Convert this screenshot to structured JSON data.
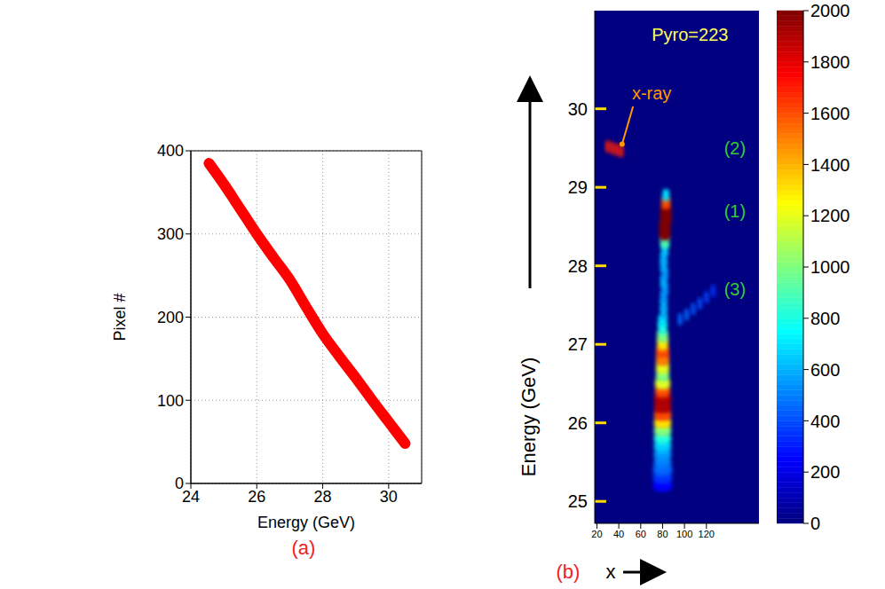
{
  "chart_data": [
    {
      "type": "line",
      "panel": "(a)",
      "x_label": "Energy (GeV)",
      "y_label": "Pixel #",
      "x": [
        24.55,
        25.0,
        25.5,
        26.0,
        26.5,
        27.0,
        27.5,
        28.0,
        28.5,
        29.0,
        29.5,
        30.0,
        30.5
      ],
      "values": [
        385,
        360,
        330,
        300,
        272,
        245,
        212,
        180,
        153,
        127,
        100,
        74,
        48
      ],
      "color": "#ff0000",
      "line_style": "solid",
      "xlim": [
        24,
        31
      ],
      "xticks": [
        24,
        26,
        28,
        30
      ],
      "ylim": [
        0,
        400
      ],
      "yticks": [
        0,
        100,
        200,
        300,
        400
      ],
      "grid": true
    },
    {
      "type": "heatmap",
      "panel": "(b)",
      "x_label": "x",
      "y_label": "Energy (GeV)",
      "xlim": [
        18,
        168
      ],
      "xticks": [
        20,
        40,
        60,
        80,
        100,
        120
      ],
      "ylim": [
        24.72,
        31.25
      ],
      "yticks": [
        25,
        26,
        27,
        28,
        29,
        30
      ],
      "cell_height": 0.1,
      "cells": [
        {
          "x": 80,
          "y": 25.2,
          "v": 250,
          "w": 9
        },
        {
          "x": 80,
          "y": 25.3,
          "v": 350,
          "w": 9
        },
        {
          "x": 80,
          "y": 25.4,
          "v": 450,
          "w": 9
        },
        {
          "x": 80,
          "y": 25.5,
          "v": 500,
          "w": 8
        },
        {
          "x": 80,
          "y": 25.6,
          "v": 550,
          "w": 8
        },
        {
          "x": 80,
          "y": 25.7,
          "v": 650,
          "w": 8
        },
        {
          "x": 80,
          "y": 25.8,
          "v": 800,
          "w": 8
        },
        {
          "x": 80,
          "y": 25.9,
          "v": 1000,
          "w": 8
        },
        {
          "x": 80,
          "y": 26.0,
          "v": 1300,
          "w": 8
        },
        {
          "x": 80,
          "y": 26.1,
          "v": 1600,
          "w": 8
        },
        {
          "x": 80,
          "y": 26.2,
          "v": 1900,
          "w": 8
        },
        {
          "x": 80,
          "y": 26.3,
          "v": 1900,
          "w": 8
        },
        {
          "x": 80,
          "y": 26.4,
          "v": 1600,
          "w": 7
        },
        {
          "x": 80,
          "y": 26.5,
          "v": 1200,
          "w": 7
        },
        {
          "x": 80,
          "y": 26.6,
          "v": 1000,
          "w": 6
        },
        {
          "x": 80,
          "y": 26.7,
          "v": 1200,
          "w": 6
        },
        {
          "x": 80,
          "y": 26.8,
          "v": 1500,
          "w": 6
        },
        {
          "x": 80,
          "y": 26.9,
          "v": 1600,
          "w": 6
        },
        {
          "x": 80,
          "y": 27.0,
          "v": 1300,
          "w": 5
        },
        {
          "x": 80,
          "y": 27.1,
          "v": 1000,
          "w": 5
        },
        {
          "x": 80,
          "y": 27.2,
          "v": 800,
          "w": 4
        },
        {
          "x": 80,
          "y": 27.3,
          "v": 700,
          "w": 4
        },
        {
          "x": 81,
          "y": 27.4,
          "v": 600,
          "w": 3
        },
        {
          "x": 81,
          "y": 27.5,
          "v": 600,
          "w": 3
        },
        {
          "x": 81,
          "y": 27.6,
          "v": 550,
          "w": 3
        },
        {
          "x": 82,
          "y": 27.7,
          "v": 550,
          "w": 3
        },
        {
          "x": 81,
          "y": 27.8,
          "v": 600,
          "w": 3
        },
        {
          "x": 82,
          "y": 27.9,
          "v": 550,
          "w": 3
        },
        {
          "x": 81,
          "y": 28.0,
          "v": 600,
          "w": 3
        },
        {
          "x": 81,
          "y": 28.1,
          "v": 600,
          "w": 3
        },
        {
          "x": 82,
          "y": 28.2,
          "v": 650,
          "w": 3
        },
        {
          "x": 82,
          "y": 28.3,
          "v": 900,
          "w": 4
        },
        {
          "x": 82,
          "y": 28.4,
          "v": 2000,
          "w": 5
        },
        {
          "x": 82,
          "y": 28.5,
          "v": 2000,
          "w": 5
        },
        {
          "x": 83,
          "y": 28.6,
          "v": 2000,
          "w": 5
        },
        {
          "x": 83,
          "y": 28.7,
          "v": 2000,
          "w": 5
        },
        {
          "x": 83,
          "y": 28.8,
          "v": 1600,
          "w": 4
        },
        {
          "x": 83,
          "y": 28.9,
          "v": 700,
          "w": 3
        },
        {
          "x": 96,
          "y": 27.32,
          "v": 450,
          "w": 2
        },
        {
          "x": 102,
          "y": 27.38,
          "v": 450,
          "w": 2
        },
        {
          "x": 108,
          "y": 27.45,
          "v": 420,
          "w": 2
        },
        {
          "x": 114,
          "y": 27.52,
          "v": 400,
          "w": 2
        },
        {
          "x": 120,
          "y": 27.6,
          "v": 380,
          "w": 2
        },
        {
          "x": 126,
          "y": 27.68,
          "v": 350,
          "w": 2
        },
        {
          "x": 30,
          "y": 29.52,
          "v": 1700,
          "w": 2
        },
        {
          "x": 34,
          "y": 29.5,
          "v": 1700,
          "w": 2
        },
        {
          "x": 38,
          "y": 29.48,
          "v": 1700,
          "w": 2
        },
        {
          "x": 42,
          "y": 29.46,
          "v": 1700,
          "w": 2
        }
      ],
      "colorbar": {
        "range": [
          0,
          2000
        ],
        "ticks": [
          0,
          200,
          400,
          600,
          800,
          1000,
          1200,
          1400,
          1600,
          1800,
          2000
        ]
      },
      "annotations": [
        {
          "text": "Pyro=223",
          "x": 105,
          "y": 30.95,
          "color": "#ffff55"
        },
        {
          "text": "x-ray",
          "x": 70,
          "y": 30.2,
          "color": "#ff9900",
          "arrow_to": [
            43,
            29.55
          ]
        },
        {
          "text": "(2)",
          "x": 146,
          "y": 29.5,
          "color": "#33cc33"
        },
        {
          "text": "(1)",
          "x": 146,
          "y": 28.7,
          "color": "#33cc33"
        },
        {
          "text": "(3)",
          "x": 146,
          "y": 27.7,
          "color": "#33cc33"
        }
      ]
    }
  ]
}
